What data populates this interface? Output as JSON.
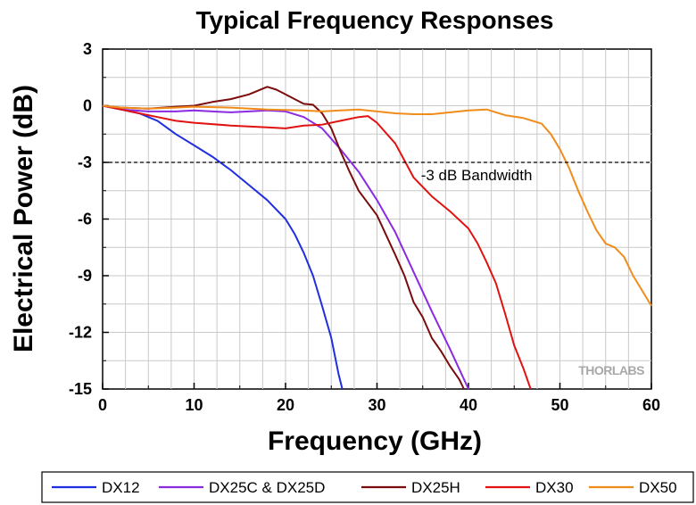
{
  "chart_data": {
    "type": "line",
    "title": "Typical Frequency Responses",
    "xlabel": "Frequency (GHz)",
    "ylabel": "Electrical Power (dB)",
    "xlim": [
      0,
      60
    ],
    "ylim": [
      -15,
      3
    ],
    "xticks": [
      0,
      10,
      20,
      30,
      40,
      50,
      60
    ],
    "yticks": [
      3,
      0,
      -3,
      -6,
      -9,
      -12,
      -15
    ],
    "grid": true,
    "legend_position": "bottom",
    "watermark": "THORLABS",
    "annotations": [
      {
        "text": "-3 dB Bandwidth",
        "type": "hline",
        "y": -3
      }
    ],
    "series": [
      {
        "name": "DX12",
        "color": "#1f2fe0",
        "points": [
          [
            0,
            0
          ],
          [
            2,
            -0.2
          ],
          [
            4,
            -0.4
          ],
          [
            6,
            -0.8
          ],
          [
            8,
            -1.5
          ],
          [
            10,
            -2.1
          ],
          [
            12,
            -2.7
          ],
          [
            14,
            -3.4
          ],
          [
            16,
            -4.2
          ],
          [
            18,
            -5.0
          ],
          [
            20,
            -6.0
          ],
          [
            21,
            -6.8
          ],
          [
            22,
            -7.8
          ],
          [
            23,
            -9.0
          ],
          [
            24,
            -10.6
          ],
          [
            25,
            -12.3
          ],
          [
            25.8,
            -14.2
          ],
          [
            26.2,
            -15
          ]
        ]
      },
      {
        "name": "DX25C & DX25D",
        "color": "#8a2be2",
        "points": [
          [
            0,
            0
          ],
          [
            2,
            -0.2
          ],
          [
            5,
            -0.3
          ],
          [
            8,
            -0.3
          ],
          [
            10,
            -0.25
          ],
          [
            12,
            -0.3
          ],
          [
            14,
            -0.35
          ],
          [
            16,
            -0.3
          ],
          [
            18,
            -0.25
          ],
          [
            20,
            -0.3
          ],
          [
            22,
            -0.6
          ],
          [
            24,
            -1.2
          ],
          [
            26,
            -2.3
          ],
          [
            28,
            -3.5
          ],
          [
            30,
            -5.0
          ],
          [
            32,
            -6.7
          ],
          [
            34,
            -8.8
          ],
          [
            36,
            -10.9
          ],
          [
            38,
            -12.9
          ],
          [
            40,
            -15
          ]
        ]
      },
      {
        "name": "DX25H",
        "color": "#7a0c0c",
        "points": [
          [
            0,
            0
          ],
          [
            2,
            -0.1
          ],
          [
            5,
            -0.15
          ],
          [
            8,
            -0.05
          ],
          [
            10,
            0.0
          ],
          [
            12,
            0.2
          ],
          [
            14,
            0.35
          ],
          [
            16,
            0.6
          ],
          [
            18,
            1.0
          ],
          [
            19,
            0.85
          ],
          [
            20,
            0.6
          ],
          [
            21,
            0.35
          ],
          [
            22,
            0.1
          ],
          [
            23,
            0.05
          ],
          [
            24,
            -0.4
          ],
          [
            25,
            -1.2
          ],
          [
            26,
            -2.4
          ],
          [
            27,
            -3.5
          ],
          [
            28,
            -4.5
          ],
          [
            30,
            -5.8
          ],
          [
            32,
            -7.9
          ],
          [
            33,
            -9.0
          ],
          [
            34,
            -10.4
          ],
          [
            35,
            -11.2
          ],
          [
            36,
            -12.3
          ],
          [
            37,
            -13.0
          ],
          [
            38,
            -13.8
          ],
          [
            39,
            -14.5
          ],
          [
            39.5,
            -15
          ]
        ]
      },
      {
        "name": "DX30",
        "color": "#e01212",
        "points": [
          [
            0,
            0
          ],
          [
            2,
            -0.2
          ],
          [
            4,
            -0.4
          ],
          [
            6,
            -0.6
          ],
          [
            8,
            -0.8
          ],
          [
            10,
            -0.9
          ],
          [
            14,
            -1.05
          ],
          [
            18,
            -1.15
          ],
          [
            20,
            -1.2
          ],
          [
            22,
            -1.05
          ],
          [
            24,
            -1.0
          ],
          [
            26,
            -0.8
          ],
          [
            28,
            -0.6
          ],
          [
            29,
            -0.55
          ],
          [
            30,
            -0.9
          ],
          [
            32,
            -2.0
          ],
          [
            33,
            -2.9
          ],
          [
            34,
            -3.8
          ],
          [
            36,
            -4.8
          ],
          [
            38,
            -5.6
          ],
          [
            40,
            -6.5
          ],
          [
            41,
            -7.3
          ],
          [
            42,
            -8.3
          ],
          [
            43,
            -9.4
          ],
          [
            44,
            -11.0
          ],
          [
            45,
            -12.7
          ],
          [
            46,
            -13.9
          ],
          [
            46.8,
            -15
          ]
        ]
      },
      {
        "name": "DX50",
        "color": "#f08c1a",
        "points": [
          [
            0,
            0
          ],
          [
            2,
            -0.1
          ],
          [
            5,
            -0.15
          ],
          [
            8,
            -0.1
          ],
          [
            10,
            -0.05
          ],
          [
            14,
            -0.1
          ],
          [
            18,
            -0.2
          ],
          [
            22,
            -0.25
          ],
          [
            24,
            -0.3
          ],
          [
            26,
            -0.25
          ],
          [
            28,
            -0.2
          ],
          [
            30,
            -0.3
          ],
          [
            32,
            -0.4
          ],
          [
            34,
            -0.45
          ],
          [
            36,
            -0.45
          ],
          [
            38,
            -0.35
          ],
          [
            40,
            -0.25
          ],
          [
            42,
            -0.2
          ],
          [
            44,
            -0.5
          ],
          [
            46,
            -0.65
          ],
          [
            48,
            -0.95
          ],
          [
            49,
            -1.5
          ],
          [
            50,
            -2.3
          ],
          [
            51,
            -3.3
          ],
          [
            52,
            -4.5
          ],
          [
            53,
            -5.6
          ],
          [
            54,
            -6.6
          ],
          [
            55,
            -7.3
          ],
          [
            56,
            -7.5
          ],
          [
            57,
            -8.0
          ],
          [
            58,
            -9.0
          ],
          [
            59,
            -9.8
          ],
          [
            60,
            -10.6
          ]
        ]
      }
    ]
  }
}
